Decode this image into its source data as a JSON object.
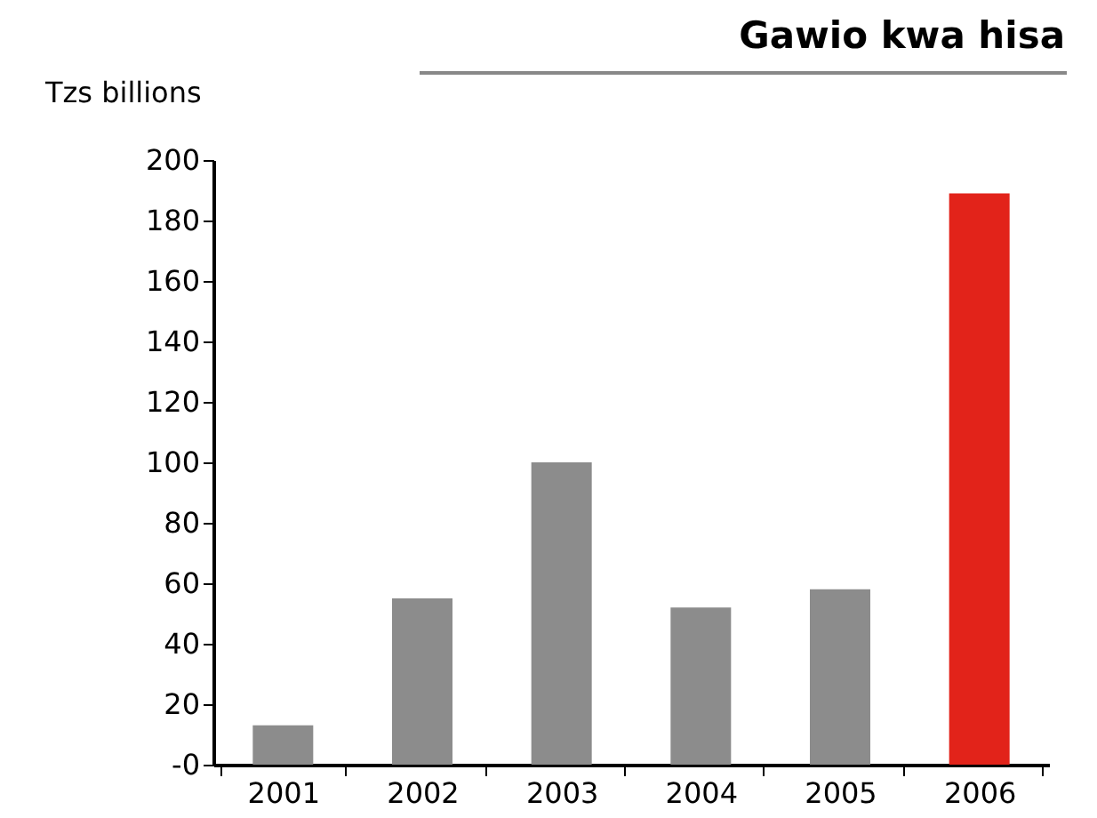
{
  "chart_data": {
    "type": "bar",
    "title": "Gawio kwa hisa",
    "ylabel": "Tzs billions",
    "categories": [
      "2001",
      "2002",
      "2003",
      "2004",
      "2005",
      "2006"
    ],
    "values": [
      13,
      55,
      100,
      52,
      58,
      189
    ],
    "colors": [
      "#8c8c8c",
      "#8c8c8c",
      "#8c8c8c",
      "#8c8c8c",
      "#8c8c8c",
      "#e2231a"
    ],
    "ylim": [
      0,
      200
    ],
    "yticks": [
      {
        "value": 0,
        "label": "-0"
      },
      20,
      40,
      60,
      80,
      100,
      120,
      140,
      160,
      180,
      200
    ],
    "grid": false
  }
}
